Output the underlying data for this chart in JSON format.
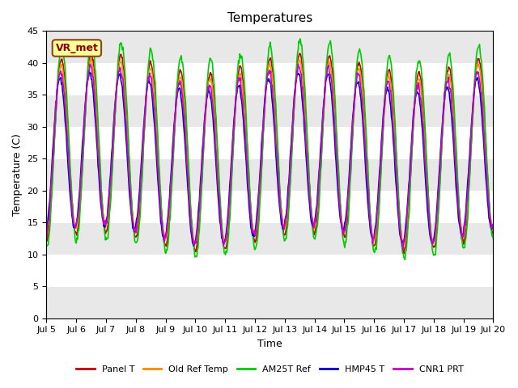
{
  "title": "Temperatures",
  "xlabel": "Time",
  "ylabel": "Temperature (C)",
  "ylim": [
    0,
    45
  ],
  "yticks": [
    0,
    5,
    10,
    15,
    20,
    25,
    30,
    35,
    40,
    45
  ],
  "xlim_days": [
    5,
    20
  ],
  "xtick_labels": [
    "Jul 5",
    "Jul 6",
    "Jul 7",
    "Jul 8",
    "Jul 9",
    "Jul 10",
    "Jul 11",
    "Jul 12",
    "Jul 13",
    "Jul 14",
    "Jul 15",
    "Jul 16",
    "Jul 17",
    "Jul 18",
    "Jul 19",
    "Jul 20"
  ],
  "annotation_text": "VR_met",
  "annotation_bg": "#ffff99",
  "annotation_border": "#8B4513",
  "lines": {
    "Panel T": "#cc0000",
    "Old Ref Temp": "#ff8800",
    "AM25T Ref": "#00cc00",
    "HMP45 T": "#0000cc",
    "CNR1 PRT": "#cc00cc"
  },
  "band_color": "#e8e8e8",
  "plot_bg": "#f5f5f5",
  "grid_color": "#ffffff"
}
